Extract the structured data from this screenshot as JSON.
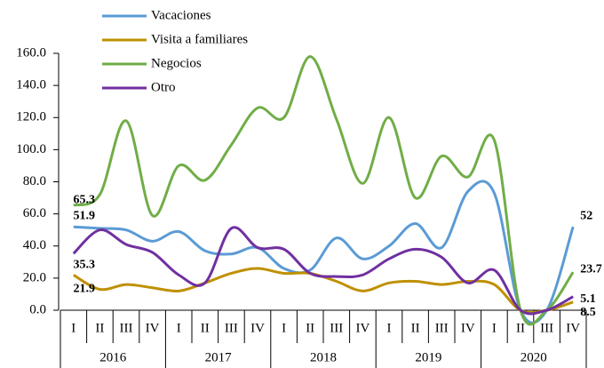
{
  "chart_data": {
    "type": "line",
    "categories": [
      "I",
      "II",
      "III",
      "IV",
      "I",
      "II",
      "III",
      "IV",
      "I",
      "II",
      "III",
      "IV",
      "I",
      "II",
      "III",
      "IV",
      "I",
      "II",
      "III",
      "IV"
    ],
    "groups": [
      "2016",
      "2017",
      "2018",
      "2019",
      "2020"
    ],
    "series": [
      {
        "name": "Vacaciones",
        "color": "#5b9bd5",
        "values": [
          51.9,
          51,
          50,
          43,
          49,
          37,
          35,
          39,
          26,
          25,
          45,
          32,
          40,
          54,
          39,
          74,
          73,
          0,
          0,
          52.0
        ]
      },
      {
        "name": "Visita a familiares",
        "color": "#bf9000",
        "values": [
          21.9,
          13,
          16,
          14,
          12,
          17,
          23,
          26,
          23,
          23,
          18,
          12,
          17,
          18,
          16,
          18,
          16,
          0,
          0,
          5.1
        ]
      },
      {
        "name": "Negocios",
        "color": "#70ad47",
        "values": [
          65.3,
          72,
          118,
          59,
          90,
          81,
          103,
          126,
          120,
          158,
          119,
          79,
          120,
          70,
          96,
          83,
          106,
          0,
          0,
          23.7
        ]
      },
      {
        "name": "Otro",
        "color": "#7030a0",
        "values": [
          35.3,
          50,
          41,
          36,
          22,
          17,
          51,
          39,
          38,
          23,
          21,
          22,
          32,
          38,
          33,
          17,
          25,
          0,
          0,
          8.5
        ]
      }
    ],
    "ylim": [
      0,
      160
    ],
    "yticks": [
      {
        "value": 0,
        "label": "0.0"
      },
      {
        "value": 20,
        "label": "20.0"
      },
      {
        "value": 40,
        "label": "40.0"
      },
      {
        "value": 60,
        "label": "60.0"
      },
      {
        "value": 80,
        "label": "80.0"
      },
      {
        "value": 100,
        "label": "100.0"
      },
      {
        "value": 120,
        "label": "120.0"
      },
      {
        "value": 140,
        "label": "140.0"
      },
      {
        "value": 160,
        "label": "160.0"
      }
    ]
  }
}
